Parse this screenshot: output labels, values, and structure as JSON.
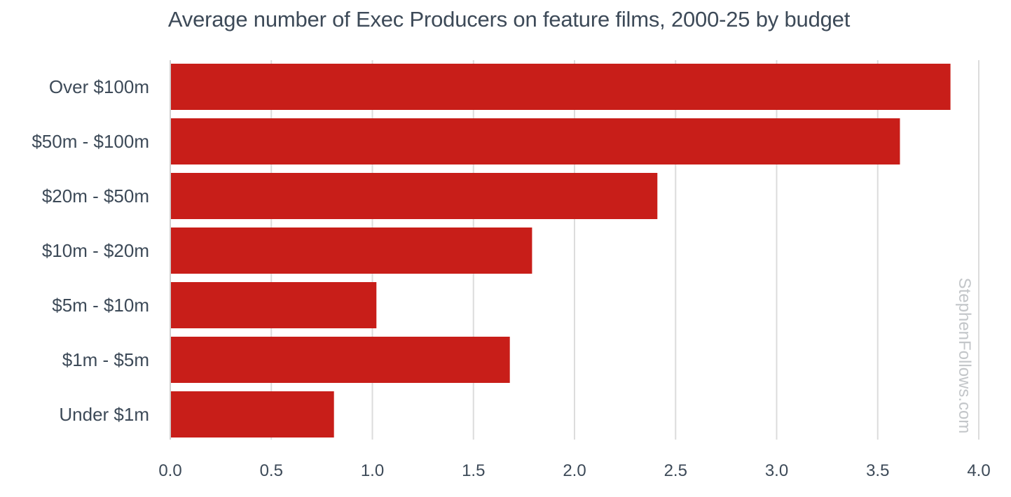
{
  "chart_data": {
    "type": "bar",
    "orientation": "horizontal",
    "title": "Average number of Exec Producers on feature films, 2000-25 by budget",
    "xlabel": "",
    "ylabel": "",
    "categories": [
      "Over $100m",
      "$50m - $100m",
      "$20m - $50m",
      "$10m - $20m",
      "$5m - $10m",
      "$1m - $5m",
      "Under $1m"
    ],
    "values": [
      3.86,
      3.61,
      2.41,
      1.79,
      1.02,
      1.68,
      0.81
    ],
    "xlim": [
      0,
      4
    ],
    "xticks": [
      "0.0",
      "0.5",
      "1.0",
      "1.5",
      "2.0",
      "2.5",
      "3.0",
      "3.5",
      "4.0"
    ],
    "grid": true,
    "legend": "none",
    "bar_color": "#c81e19",
    "grid_color": "#dcdcdc",
    "text_color": "#3d4a58"
  },
  "watermark": "StephenFollows.com"
}
